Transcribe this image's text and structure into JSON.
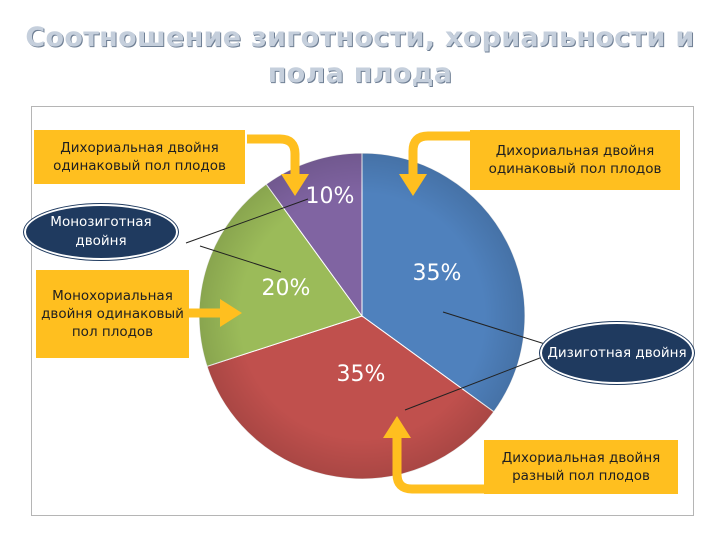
{
  "title": "Соотношение зиготности, хориальности и пола плода",
  "callouts": {
    "top_left": "Дихориальная двойня одинаковый пол плодов",
    "top_right": "Дихориальная двойня одинаковый пол плодов",
    "mid_left": "Монохориальная двойня одинаковый пол плодов",
    "bottom_right": "Дихориальная двойня разный пол плодов",
    "bubble_mono": "Монозиготная двойня",
    "bubble_di": "Дизиготная двойня"
  },
  "colors": {
    "blue": "#4f81bd",
    "red": "#c0504d",
    "green": "#9bbb59",
    "purple": "#8064a2",
    "callout": "#ffbf1f",
    "bubble": "#1f3a5f"
  },
  "chart_data": {
    "type": "pie",
    "title": "Соотношение зиготности, хориальности и пола плода",
    "slices": [
      {
        "label": "35%",
        "value": 35,
        "color": "#4f81bd"
      },
      {
        "label": "35%",
        "value": 35,
        "color": "#c0504d"
      },
      {
        "label": "20%",
        "value": 20,
        "color": "#9bbb59"
      },
      {
        "label": "10%",
        "value": 10,
        "color": "#8064a2"
      }
    ],
    "legend": "none"
  }
}
